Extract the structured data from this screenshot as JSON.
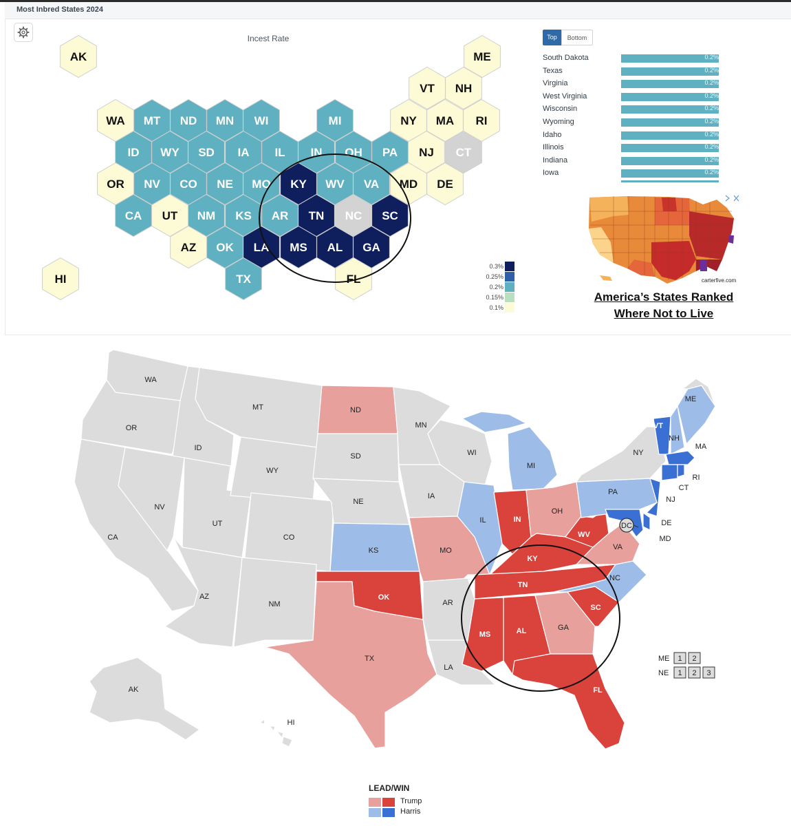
{
  "header": {
    "title": "Most Inbred States 2024"
  },
  "hexmap": {
    "title": "Incest Rate",
    "colors": {
      "0.3": "#0f1f5e",
      "0.25": "#2f5fa6",
      "0.2": "#5fb1c1",
      "0.15": "#b9dfc0",
      "0.1": "#fdfbd6",
      "na": "#d3d3d3"
    },
    "legend": [
      "0.3%",
      "0.25%",
      "0.2%",
      "0.15%",
      "0.1%"
    ],
    "states": [
      {
        "id": "AK",
        "c": "0.1"
      },
      {
        "id": "ME",
        "c": "0.1"
      },
      {
        "id": "VT",
        "c": "0.1"
      },
      {
        "id": "NH",
        "c": "0.1"
      },
      {
        "id": "WA",
        "c": "0.1"
      },
      {
        "id": "MT",
        "c": "0.2"
      },
      {
        "id": "ND",
        "c": "0.2"
      },
      {
        "id": "MN",
        "c": "0.2"
      },
      {
        "id": "WI",
        "c": "0.2"
      },
      {
        "id": "MI",
        "c": "0.2"
      },
      {
        "id": "NY",
        "c": "0.1"
      },
      {
        "id": "MA",
        "c": "0.1"
      },
      {
        "id": "RI",
        "c": "0.1"
      },
      {
        "id": "ID",
        "c": "0.2"
      },
      {
        "id": "WY",
        "c": "0.2"
      },
      {
        "id": "SD",
        "c": "0.2"
      },
      {
        "id": "IA",
        "c": "0.2"
      },
      {
        "id": "IL",
        "c": "0.2"
      },
      {
        "id": "IN",
        "c": "0.2"
      },
      {
        "id": "OH",
        "c": "0.2"
      },
      {
        "id": "PA",
        "c": "0.2"
      },
      {
        "id": "NJ",
        "c": "0.1"
      },
      {
        "id": "CT",
        "c": "na"
      },
      {
        "id": "OR",
        "c": "0.1"
      },
      {
        "id": "NV",
        "c": "0.2"
      },
      {
        "id": "CO",
        "c": "0.2"
      },
      {
        "id": "NE",
        "c": "0.2"
      },
      {
        "id": "MO",
        "c": "0.2"
      },
      {
        "id": "KY",
        "c": "0.3"
      },
      {
        "id": "WV",
        "c": "0.2"
      },
      {
        "id": "VA",
        "c": "0.2"
      },
      {
        "id": "MD",
        "c": "0.1"
      },
      {
        "id": "DE",
        "c": "0.1"
      },
      {
        "id": "CA",
        "c": "0.2"
      },
      {
        "id": "UT",
        "c": "0.1"
      },
      {
        "id": "NM",
        "c": "0.2"
      },
      {
        "id": "KS",
        "c": "0.2"
      },
      {
        "id": "AR",
        "c": "0.2"
      },
      {
        "id": "TN",
        "c": "0.3"
      },
      {
        "id": "NC",
        "c": "na"
      },
      {
        "id": "SC",
        "c": "0.3"
      },
      {
        "id": "AZ",
        "c": "0.1"
      },
      {
        "id": "OK",
        "c": "0.2"
      },
      {
        "id": "LA",
        "c": "0.3"
      },
      {
        "id": "MS",
        "c": "0.3"
      },
      {
        "id": "AL",
        "c": "0.3"
      },
      {
        "id": "GA",
        "c": "0.3"
      },
      {
        "id": "HI",
        "c": "0.1"
      },
      {
        "id": "TX",
        "c": "0.2"
      },
      {
        "id": "FL",
        "c": "0.1"
      }
    ]
  },
  "ranking": {
    "tabs": {
      "top": "Top",
      "bottom": "Bottom"
    },
    "rows": [
      {
        "state": "South Dakota",
        "value": "0.2%"
      },
      {
        "state": "Texas",
        "value": "0.2%"
      },
      {
        "state": "Virginia",
        "value": "0.2%"
      },
      {
        "state": "West Virginia",
        "value": "0.2%"
      },
      {
        "state": "Wisconsin",
        "value": "0.2%"
      },
      {
        "state": "Wyoming",
        "value": "0.2%"
      },
      {
        "state": "Idaho",
        "value": "0.2%"
      },
      {
        "state": "Illinois",
        "value": "0.2%"
      },
      {
        "state": "Indiana",
        "value": "0.2%"
      },
      {
        "state": "Iowa",
        "value": "0.2%"
      }
    ]
  },
  "ad": {
    "title_line1": "America’s States Ranked",
    "title_line2": "Where Not to Live",
    "credit": "carterfive.com"
  },
  "election": {
    "colors": {
      "trump_lead": "#e8a09c",
      "trump_win": "#d9433c",
      "harris_lead": "#9dbde8",
      "harris_win": "#3a6fd4",
      "none": "#dcdcdc"
    },
    "labels": [
      "WA",
      "OR",
      "CA",
      "ID",
      "NV",
      "MT",
      "WY",
      "UT",
      "AZ",
      "CO",
      "NM",
      "ND",
      "SD",
      "NE",
      "KS",
      "OK",
      "TX",
      "MN",
      "IA",
      "MO",
      "AR",
      "LA",
      "WI",
      "IL",
      "MI",
      "IN",
      "OH",
      "KY",
      "TN",
      "MS",
      "AL",
      "GA",
      "FL",
      "SC",
      "NC",
      "VA",
      "WV",
      "PA",
      "NY",
      "ME",
      "VT",
      "NH",
      "MA",
      "RI",
      "CT",
      "NJ",
      "DE",
      "MD",
      "DC",
      "AK",
      "HI"
    ],
    "split_votes": {
      "me_label": "ME",
      "ne_label": "NE",
      "me_boxes": [
        "1",
        "2"
      ],
      "ne_boxes": [
        "1",
        "2",
        "3"
      ]
    },
    "legend": {
      "title": "LEAD/WIN",
      "trump": "Trump",
      "harris": "Harris"
    }
  }
}
